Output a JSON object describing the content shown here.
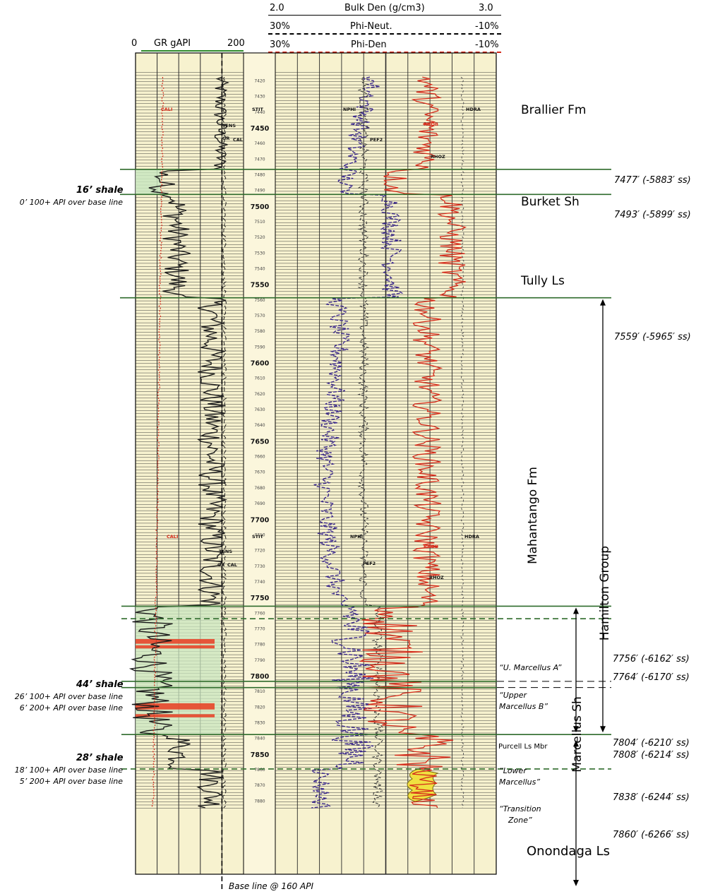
{
  "header": {
    "track1": {
      "left": "0",
      "title": "GR gAPI",
      "right": "200"
    },
    "bulk_den": {
      "left": "2.0",
      "title": "Bulk Den (g/cm3)",
      "right": "3.0"
    },
    "phi_neut": {
      "left": "30%",
      "title": "Phi-Neut.",
      "right": "-10%"
    },
    "phi_den": {
      "left": "30%",
      "title": "Phi-Den",
      "right": "-10%"
    }
  },
  "depth_track": {
    "major": [
      "7450",
      "7500",
      "7550",
      "7600",
      "7650",
      "7700",
      "7750",
      "7800",
      "7850"
    ],
    "minor": [
      "7420",
      "7430",
      "7440",
      "7460",
      "7470",
      "7480",
      "7490",
      "7510",
      "7520",
      "7530",
      "7540",
      "7560",
      "7570",
      "7580",
      "7590",
      "7610",
      "7620",
      "7630",
      "7640",
      "7660",
      "7670",
      "7680",
      "7690",
      "7710",
      "7720",
      "7730",
      "7740",
      "7760",
      "7770",
      "7780",
      "7790",
      "7810",
      "7820",
      "7830",
      "7840",
      "7860",
      "7870",
      "7880"
    ]
  },
  "curve_labels": {
    "upper": [
      "CALI",
      "STIT",
      "TENS",
      "GR",
      "CAL",
      "NPHI",
      "PEF2",
      "RHOB",
      "RHOZ",
      "HDRA"
    ],
    "lower": [
      "CALI",
      "STIT",
      "TENS",
      "GR",
      "CAL",
      "NPHI",
      "PEF2",
      "RHOB",
      "RHOZ",
      "HDRA"
    ]
  },
  "formations": {
    "brallier": "Brallier Fm",
    "burket": "Burket Sh",
    "tully": "Tully Ls",
    "mahantango": "Mahantango Fm",
    "onondaga": "Onondaga Ls",
    "hamilton": "Hamilton Group",
    "marcellus": "Marcellus Sh"
  },
  "picks": [
    {
      "depth": "7477′ (-5883′ ss)"
    },
    {
      "depth": "7493′ (-5899′ ss)"
    },
    {
      "depth": "7559′ (-5965′ ss)"
    },
    {
      "depth": "7756′ (-6162′ ss)"
    },
    {
      "depth": "7764′ (-6170′ ss)"
    },
    {
      "depth": "7804′ (-6210′ ss)"
    },
    {
      "depth": "7808′ (-6214′ ss)"
    },
    {
      "depth": "7838′ (-6244′ ss)"
    },
    {
      "depth": "7860′ (-6266′ ss)"
    }
  ],
  "zones": {
    "u_marcellus_a": "“U. Marcellus A”",
    "upper_marcellus_b_1": "“Upper",
    "upper_marcellus_b_2": "Marcellus B”",
    "purcell": "Purcell Ls Mbr",
    "lower_marcellus_1": "“Lower",
    "lower_marcellus_2": "Marcellus”",
    "transition_1": "“Transition",
    "transition_2": "Zone”"
  },
  "shales": [
    {
      "title": "16’ shale",
      "lines": [
        "0’ 100+ API over base line"
      ]
    },
    {
      "title": "44’ shale",
      "lines": [
        "26’ 100+ API over base line",
        "6’ 200+ API over base line"
      ]
    },
    {
      "title": "28’ shale",
      "lines": [
        "18’ 100+ API over base line",
        "5’ 200+ API over base line"
      ]
    }
  ],
  "baseline_note": "Base line @ 160 API",
  "colors": {
    "paper": "#f7f2cf",
    "grid": "#2a2a2a",
    "depth_track": "#fbf6dc",
    "gr_curve": "#1b1b1b",
    "neutron_curve": "#3c2a8c",
    "density_curve": "#d42a1a",
    "formation_line": "#2e6b2b",
    "shale_fill": "#c9e6c0",
    "hot_shale": "#e8452a",
    "onondaga_fill": "#f0e040"
  }
}
